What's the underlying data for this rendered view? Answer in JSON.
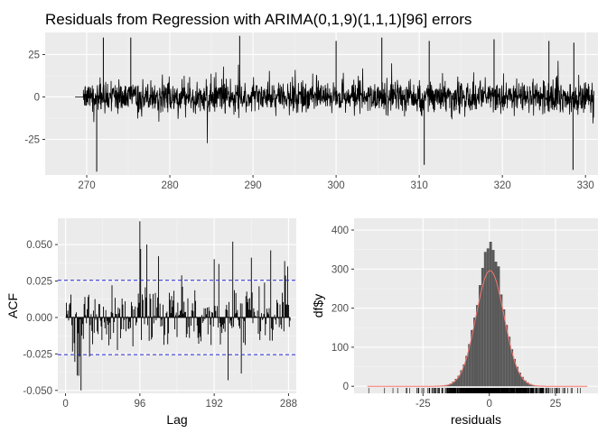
{
  "chart_data": [
    {
      "id": "residuals_ts",
      "type": "line",
      "title": "Residuals from Regression with ARIMA(0,1,9)(1,1,1)[96] errors",
      "xlabel": "",
      "ylabel": "",
      "xlim": [
        265,
        331.5
      ],
      "ylim": [
        -46,
        38
      ],
      "x_ticks": [
        270,
        280,
        290,
        300,
        310,
        320,
        330
      ],
      "y_ticks": [
        -25,
        0,
        25
      ],
      "series_x_range": [
        268.6,
        331.0
      ],
      "flat_until": 269.6,
      "envelope": {
        "typical_abs": 10,
        "max_pos": 36,
        "min_neg": -44
      },
      "notable_points": [
        {
          "x": 271.2,
          "y": -44
        },
        {
          "x": 272.0,
          "y": 35
        },
        {
          "x": 275.3,
          "y": 35
        },
        {
          "x": 288.4,
          "y": 36
        },
        {
          "x": 300.0,
          "y": 33
        },
        {
          "x": 305.5,
          "y": 35
        },
        {
          "x": 310.6,
          "y": -40
        },
        {
          "x": 311.2,
          "y": 33
        },
        {
          "x": 319.0,
          "y": 34
        },
        {
          "x": 325.6,
          "y": 33
        },
        {
          "x": 328.5,
          "y": -43
        },
        {
          "x": 328.6,
          "y": 32
        }
      ],
      "grid": true
    },
    {
      "id": "acf",
      "type": "bar",
      "title": "",
      "xlabel": "Lag",
      "ylabel": "ACF",
      "xlim": [
        -10,
        298
      ],
      "ylim": [
        -0.052,
        0.068
      ],
      "x_ticks": [
        0,
        96,
        192,
        288
      ],
      "y_ticks": [
        -0.05,
        -0.025,
        0.0,
        0.025,
        0.05
      ],
      "y_tick_labels": [
        "-0.050",
        "-0.025",
        "0.000",
        "0.025",
        "0.050"
      ],
      "confidence_bound": 0.0255,
      "max_lag": 290,
      "notable_lags": [
        {
          "lag": 96,
          "value": 0.066
        },
        {
          "lag": 97,
          "value": 0.047
        },
        {
          "lag": 20,
          "value": -0.05
        },
        {
          "lag": 17,
          "value": -0.04
        },
        {
          "lag": 105,
          "value": 0.05
        },
        {
          "lag": 216,
          "value": 0.052
        },
        {
          "lag": 265,
          "value": 0.046
        },
        {
          "lag": 287,
          "value": 0.035
        },
        {
          "lag": 210,
          "value": -0.043
        },
        {
          "lag": 120,
          "value": 0.042
        },
        {
          "lag": 240,
          "value": 0.041
        },
        {
          "lag": 192,
          "value": 0.04
        }
      ],
      "grid": true
    },
    {
      "id": "residual_hist",
      "type": "bar",
      "title": "",
      "xlabel": "residuals",
      "ylabel": "df$y",
      "xlim": [
        -51,
        41
      ],
      "ylim": [
        -18,
        430
      ],
      "x_ticks": [
        -25,
        0,
        25
      ],
      "y_ticks": [
        0,
        100,
        200,
        300,
        400
      ],
      "hist_range": [
        -46,
        37
      ],
      "bin_width": 1,
      "normal_curve": {
        "mean": 0.3,
        "sd": 5.3,
        "peak": 296
      },
      "bar_color": "#595959",
      "curve_color": "#f8766d",
      "rug": true,
      "grid": true
    }
  ]
}
